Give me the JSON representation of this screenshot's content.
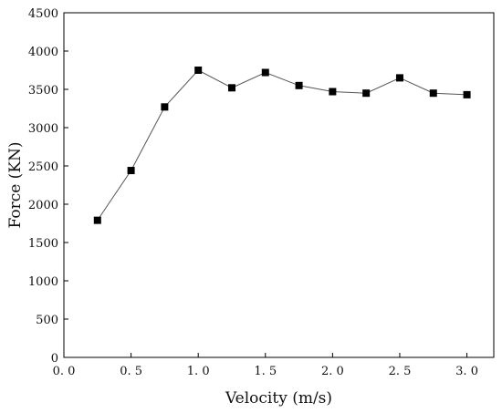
{
  "chart_data": {
    "type": "line",
    "title": "",
    "xlabel": "Velocity (m/s)",
    "ylabel": "Force (KN)",
    "xlim": [
      0.0,
      3.2
    ],
    "ylim": [
      0,
      4500
    ],
    "x_ticks": [
      0.0,
      0.5,
      1.0,
      1.5,
      2.0,
      2.5,
      3.0
    ],
    "x_tick_labels": [
      "0. 0",
      "0. 5",
      "1. 0",
      "1. 5",
      "2. 0",
      "2. 5",
      "3. 0"
    ],
    "y_ticks": [
      0,
      500,
      1000,
      1500,
      2000,
      2500,
      3000,
      3500,
      4000,
      4500
    ],
    "y_tick_labels": [
      "0",
      "500",
      "1000",
      "1500",
      "2000",
      "2500",
      "3000",
      "3500",
      "4000",
      "4500"
    ],
    "grid": false,
    "legend": "none",
    "marker": "square",
    "colors": {
      "line": "#555555",
      "marker": "#000000",
      "axis": "#000000"
    },
    "series": [
      {
        "x": [
          0.25,
          0.5,
          0.75,
          1.0,
          1.25,
          1.5,
          1.75,
          2.0,
          2.25,
          2.5,
          2.75,
          3.0
        ],
        "values": [
          1790,
          2440,
          3270,
          3750,
          3520,
          3720,
          3550,
          3470,
          3450,
          3650,
          3450,
          3430
        ]
      }
    ]
  }
}
